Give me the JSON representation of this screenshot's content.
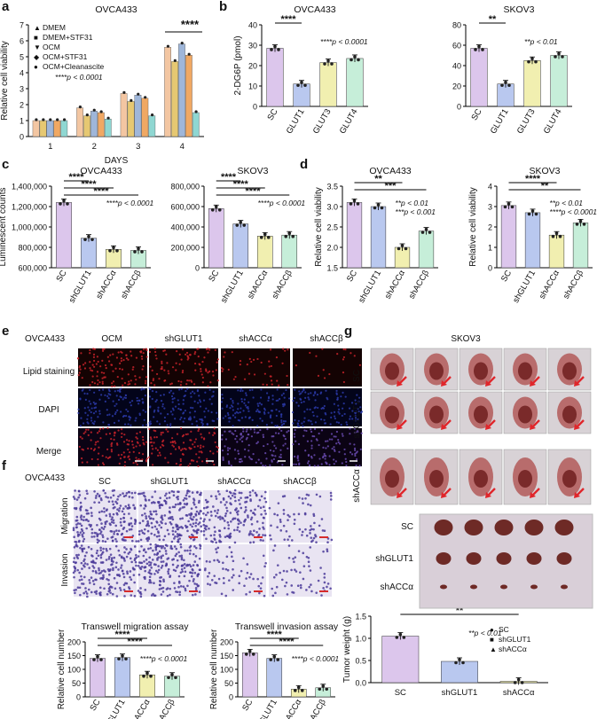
{
  "panel_labels": [
    "a",
    "b",
    "c",
    "d",
    "e",
    "f",
    "g"
  ],
  "chart_data": [
    {
      "id": "a",
      "type": "bar",
      "title": "OVCA433",
      "xlabel": "DAYS",
      "ylabel": "Relative cell viability",
      "categories": [
        "1",
        "2",
        "3",
        "4"
      ],
      "ylim": [
        0,
        7
      ],
      "yticks": [
        "0",
        "1",
        "2",
        "3",
        "4",
        "5",
        "6",
        "7"
      ],
      "series": [
        {
          "name": "DMEM",
          "values": [
            1.0,
            1.8,
            2.7,
            5.6
          ],
          "color": "#f3c6a2"
        },
        {
          "name": "DMEM+STF31",
          "values": [
            1.0,
            1.3,
            2.2,
            4.7
          ],
          "color": "#e6c872"
        },
        {
          "name": "OCM",
          "values": [
            1.0,
            1.6,
            2.6,
            5.8
          ],
          "color": "#9fb6d9"
        },
        {
          "name": "OCM+STF31",
          "values": [
            1.0,
            1.5,
            2.4,
            5.1
          ],
          "color": "#f0a863"
        },
        {
          "name": "OCM+Cleanascite",
          "values": [
            1.0,
            1.1,
            1.3,
            1.5
          ],
          "color": "#8fd7d2"
        }
      ],
      "significance": "****",
      "pvalue": "****p < 0.0001"
    },
    {
      "id": "b1",
      "type": "bar",
      "title": "OVCA433",
      "ylabel": "2-DG6P (pmol)",
      "categories": [
        "SC",
        "GLUT1",
        "GLUT3",
        "GLUT4"
      ],
      "values": [
        28.5,
        11,
        21.5,
        23.5
      ],
      "ylim": [
        0,
        40
      ],
      "yticks": [
        "0",
        "10",
        "20",
        "30",
        "40"
      ],
      "significance": "****",
      "pvalue": "****p < 0.0001"
    },
    {
      "id": "b2",
      "type": "bar",
      "title": "SKOV3",
      "categories": [
        "SC",
        "GLUT1",
        "GLUT3",
        "GLUT4"
      ],
      "values": [
        57,
        22,
        45,
        50
      ],
      "ylim": [
        0,
        80
      ],
      "yticks": [
        "0",
        "20",
        "40",
        "60",
        "80"
      ],
      "significance": "**",
      "pvalue": "**p < 0.01"
    },
    {
      "id": "c1",
      "type": "bar",
      "title": "OVCA433",
      "ylabel": "Luminescent counts",
      "categories": [
        "SC",
        "shGLUT1",
        "shACCα",
        "shACCβ"
      ],
      "values": [
        1240000,
        890000,
        780000,
        770000
      ],
      "ylim": [
        600000,
        1400000
      ],
      "yticks": [
        "600,000",
        "800,000",
        "1,000,000",
        "1,200,000",
        "1,400,000"
      ],
      "significance": [
        "****",
        "****",
        "****"
      ],
      "pvalue": "****p < 0.0001"
    },
    {
      "id": "c2",
      "type": "bar",
      "title": "SKOV3",
      "categories": [
        "SC",
        "shGLUT1",
        "shACCα",
        "shACCβ"
      ],
      "values": [
        580000,
        430000,
        310000,
        320000
      ],
      "ylim": [
        0,
        800000
      ],
      "yticks": [
        "0",
        "200,000",
        "400,000",
        "600,000",
        "800,000"
      ],
      "significance": [
        "****",
        "****",
        "****"
      ],
      "pvalue": "****p < 0.0001"
    },
    {
      "id": "d1",
      "type": "bar",
      "title": "OVCA433",
      "ylabel": "Relative cell viability",
      "categories": [
        "SC",
        "shGLUT1",
        "shACCα",
        "shACCβ"
      ],
      "values": [
        3.1,
        3.0,
        2.0,
        2.4
      ],
      "ylim": [
        1.5,
        3.5
      ],
      "yticks": [
        "1.5",
        "2.0",
        "2.5",
        "3.0",
        "3.5"
      ],
      "significance": [
        "**",
        "***"
      ],
      "pvalue": [
        "**p < 0.01",
        "***p < 0.001"
      ]
    },
    {
      "id": "d2",
      "type": "bar",
      "title": "SKOV3",
      "ylabel": "Relative cell viability",
      "categories": [
        "SC",
        "shGLUT1",
        "shACCα",
        "shACCβ"
      ],
      "values": [
        3.05,
        2.7,
        1.6,
        2.2
      ],
      "ylim": [
        0,
        4
      ],
      "yticks": [
        "0",
        "1",
        "2",
        "3",
        "4"
      ],
      "significance": [
        "****",
        "**"
      ],
      "pvalue": [
        "**p < 0.01",
        "****p < 0.0001"
      ]
    },
    {
      "id": "f1",
      "type": "bar",
      "title": "Transwell migration assay",
      "ylabel": "Relative cell number",
      "categories": [
        "SC",
        "shGLUT1",
        "shACCα",
        "shACCβ"
      ],
      "values": [
        140,
        143,
        80,
        75
      ],
      "ylim": [
        0,
        200
      ],
      "yticks": [
        "0",
        "50",
        "100",
        "150",
        "200"
      ],
      "significance": [
        "****",
        "****"
      ],
      "pvalue": "****p < 0.0001"
    },
    {
      "id": "f2",
      "type": "bar",
      "title": "Transwell invasion assay",
      "ylabel": "Relative cell number",
      "categories": [
        "SC",
        "shGLUT1",
        "shACCα",
        "shACCβ"
      ],
      "values": [
        160,
        140,
        28,
        33
      ],
      "ylim": [
        0,
        200
      ],
      "yticks": [
        "0",
        "50",
        "100",
        "150",
        "200"
      ],
      "significance": [
        "****",
        "****"
      ],
      "pvalue": "****p < 0.0001"
    },
    {
      "id": "g",
      "type": "bar",
      "title": "SKOV3",
      "ylabel": "Tumor weight (g)",
      "categories": [
        "SC",
        "shGLUT1",
        "shACCα"
      ],
      "values": [
        1.05,
        0.48,
        0.03
      ],
      "ylim": [
        0,
        1.5
      ],
      "yticks": [
        "0.0",
        "0.5",
        "1.0",
        "1.5"
      ],
      "legend": [
        "SC",
        "shGLUT1",
        "shACCα"
      ],
      "significance": "**",
      "pvalue": "**p < 0.01"
    }
  ],
  "panel_e": {
    "cell_line": "OVCA433",
    "columns": [
      "OCM",
      "shGLUT1",
      "shACCα",
      "shACCβ"
    ],
    "rows": [
      "Lipid staining",
      "DAPI",
      "Merge"
    ]
  },
  "panel_f_images": {
    "cell_line": "OVCA433",
    "columns": [
      "SC",
      "shGLUT1",
      "shACCα",
      "shACCβ"
    ],
    "rows": [
      "Migration",
      "Invasion"
    ]
  },
  "panel_g_images": {
    "title": "SKOV3",
    "rows": [
      "SC",
      "shGLUT1",
      "shACCα"
    ],
    "tumor_labels": [
      "SC",
      "shGLUT1",
      "shACCα"
    ]
  },
  "colors": {
    "sc": "#dcc6ec",
    "glut1": "#b9c8ef",
    "acca": "#f1efb0",
    "accb": "#c6eed9",
    "red_stain": "#c8232a",
    "blue_stain": "#2b3aa8",
    "violet_stain": "#6a4bb0",
    "arrow": "#e0262b"
  }
}
